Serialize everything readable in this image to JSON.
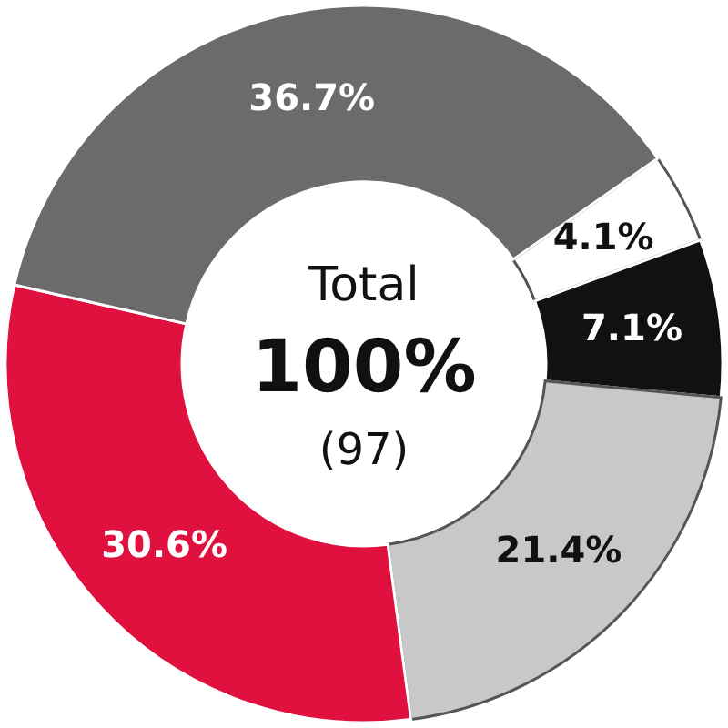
{
  "chart_data": {
    "type": "donut",
    "categories": [
      null,
      null,
      null,
      null,
      null
    ],
    "values": [
      4.1,
      7.1,
      21.4,
      30.6,
      36.7
    ],
    "value_labels": [
      "4.1%",
      "7.1%",
      "21.4%",
      "30.6%",
      "36.7%"
    ],
    "colors": [
      "#ffffff",
      "#111111",
      "#c8c8c8",
      "#e0103f",
      "#6b6b6b"
    ],
    "annotations": [
      "Total",
      "100%",
      "(97)"
    ]
  }
}
